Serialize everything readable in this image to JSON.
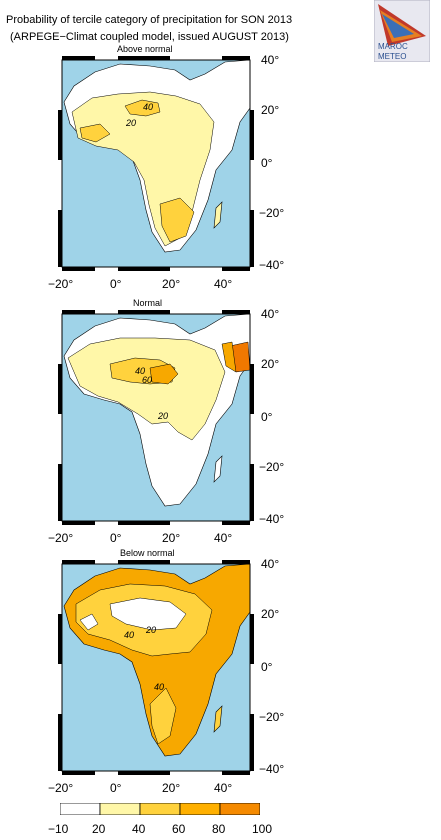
{
  "header": {
    "line1": "Probability of tercile category of precipitation for SON 2013",
    "line2": "(ARPEGE−Climat coupled model, issued AUGUST 2013)",
    "logo_line1": "MAROC",
    "logo_line2": "METEO"
  },
  "panels": [
    {
      "title": "Above normal",
      "contour_labels": [
        "40",
        "20"
      ]
    },
    {
      "title": "Normal",
      "contour_labels": [
        "40",
        "60",
        "20"
      ]
    },
    {
      "title": "Below normal",
      "contour_labels": [
        "20",
        "40",
        "40"
      ]
    }
  ],
  "axes": {
    "lat_ticks": [
      "40°",
      "20°",
      "0°",
      "−20°",
      "−40°"
    ],
    "lon_ticks": [
      "−20°",
      "0°",
      "20°",
      "40°"
    ]
  },
  "colorbar": {
    "labels": [
      "−10",
      "20",
      "40",
      "60",
      "80",
      "100"
    ],
    "colors": [
      "#ffffff",
      "#fff7a8",
      "#ffd23d",
      "#ffb000",
      "#f58a00"
    ]
  },
  "colors": {
    "ocean": "#9fd3e8",
    "land_low": "#ffffff",
    "c20": "#fff7a8",
    "c40": "#ffd23d",
    "c60": "#f7a800",
    "c80": "#f07800"
  }
}
